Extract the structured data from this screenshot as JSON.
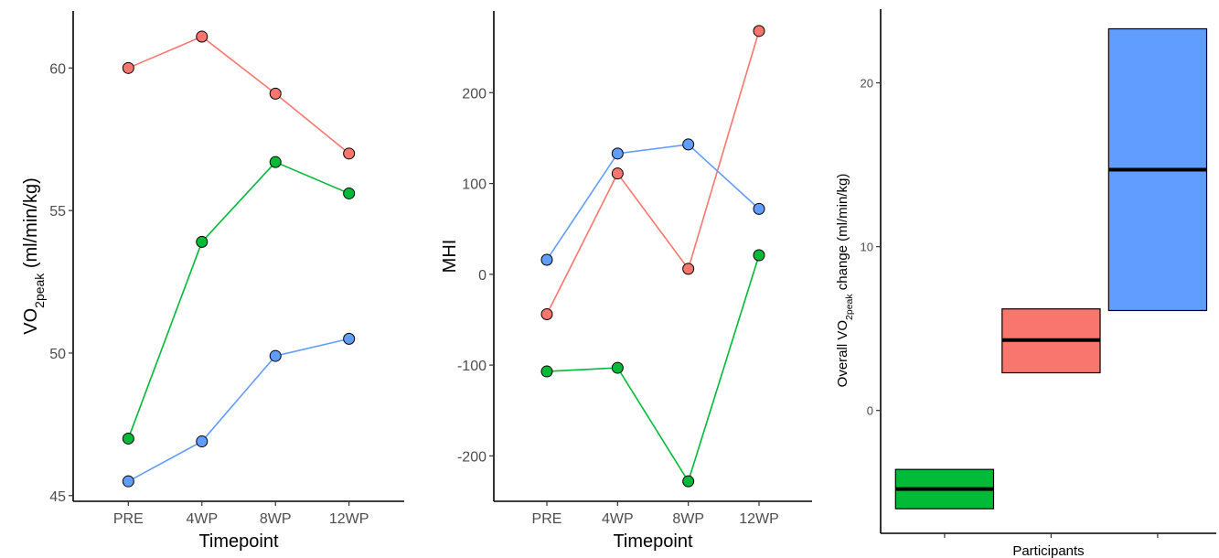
{
  "colors": {
    "red": "#F8766D",
    "green": "#00BA38",
    "blue": "#619CFF"
  },
  "chart_data": [
    {
      "type": "line",
      "categories": [
        "PRE",
        "4WP",
        "8WP",
        "12WP"
      ],
      "xlabel": "Timepoint",
      "ylabel": {
        "main": "VO",
        "sub": "2peak",
        "rest": " (ml/min/kg)"
      },
      "ylim": [
        44.8,
        62
      ],
      "yticks": [
        45,
        50,
        55,
        60
      ],
      "series": [
        {
          "color": "red",
          "values": [
            60.0,
            61.1,
            59.1,
            57.0
          ]
        },
        {
          "color": "green",
          "values": [
            47.0,
            53.9,
            56.7,
            55.6
          ]
        },
        {
          "color": "blue",
          "values": [
            45.5,
            46.9,
            49.9,
            50.5
          ]
        }
      ]
    },
    {
      "type": "line",
      "categories": [
        "PRE",
        "4WP",
        "8WP",
        "12WP"
      ],
      "xlabel": "Timepoint",
      "ylabel": "MHI",
      "ylim": [
        -250,
        290
      ],
      "yticks": [
        -200,
        -100,
        0,
        100,
        200
      ],
      "series": [
        {
          "color": "red",
          "values": [
            -44,
            111,
            6,
            268
          ]
        },
        {
          "color": "green",
          "values": [
            -107,
            -103,
            -228,
            21
          ]
        },
        {
          "color": "blue",
          "values": [
            16,
            133,
            143,
            72
          ]
        }
      ]
    },
    {
      "type": "bar",
      "categories": [
        "green",
        "red",
        "blue"
      ],
      "xlabel": "Participants",
      "ylabel": {
        "main": "Overall VO",
        "sub": "2peak",
        "rest": " change (ml/min/kg)"
      },
      "ylim": [
        -7.5,
        24.5
      ],
      "yticks": [
        0,
        10,
        20
      ],
      "boxes": [
        {
          "color": "green",
          "low": -6.0,
          "high": -3.6,
          "mid": -4.8
        },
        {
          "color": "red",
          "low": 2.3,
          "high": 6.2,
          "mid": 4.3
        },
        {
          "color": "blue",
          "low": 6.1,
          "high": 23.3,
          "mid": 14.7
        }
      ]
    }
  ]
}
